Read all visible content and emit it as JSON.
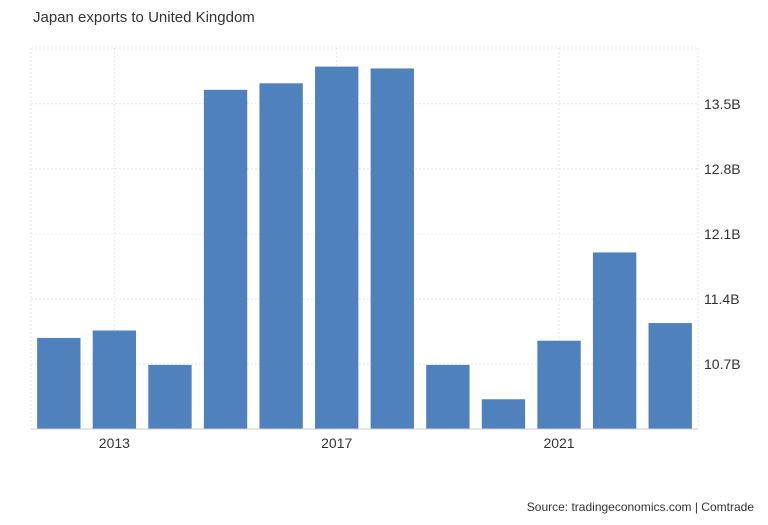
{
  "title": "Japan exports to United Kingdom",
  "source": "Source: tradingeconomics.com | Comtrade",
  "colors": {
    "bar": "#4f81bd",
    "grid": "#e6e6e6",
    "axis": "#cccccc",
    "text": "#333333"
  },
  "chart_data": {
    "type": "bar",
    "title": "Japan exports to United Kingdom",
    "categories": [
      "2012",
      "2013",
      "2014",
      "2015",
      "2016",
      "2017",
      "2018",
      "2019",
      "2020",
      "2021",
      "2022",
      "2023"
    ],
    "values": [
      10.98,
      11.06,
      10.69,
      13.65,
      13.72,
      13.9,
      13.88,
      10.69,
      10.32,
      10.95,
      11.9,
      11.14
    ],
    "unit": "B",
    "x_tick_labels": [
      "2013",
      "2017",
      "2021"
    ],
    "y_ticks": [
      10.7,
      11.4,
      12.1,
      12.8,
      13.5
    ],
    "y_tick_labels": [
      "10.7B",
      "11.4B",
      "12.1B",
      "12.8B",
      "13.5B"
    ],
    "ylim": [
      10.0,
      14.1
    ],
    "y_axis_position": "right",
    "grid": true,
    "legend": "none"
  }
}
